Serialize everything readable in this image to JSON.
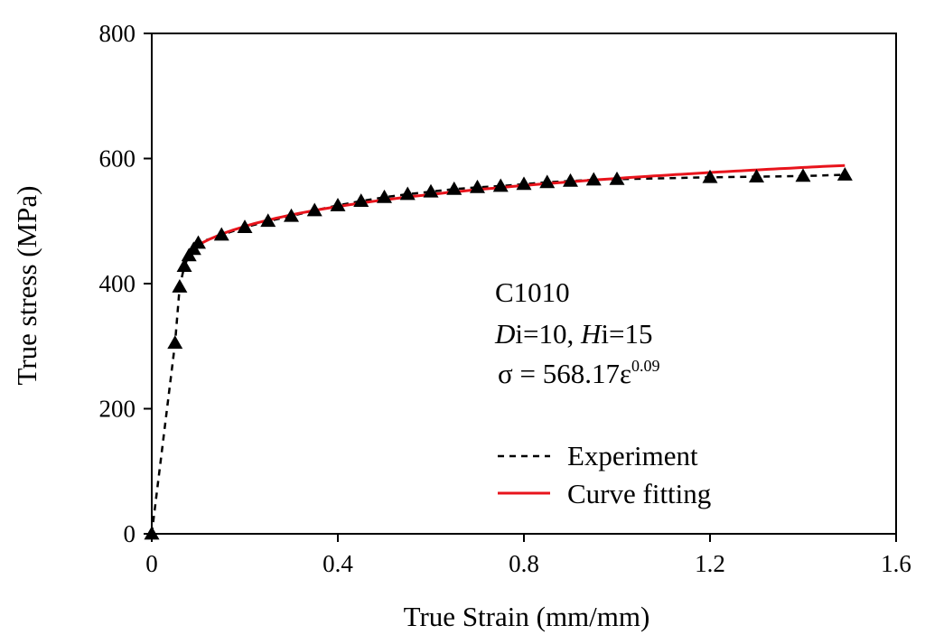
{
  "chart_data": {
    "type": "line",
    "title": "",
    "xlabel": "True Strain (mm/mm)",
    "ylabel": "True stress (MPa)",
    "xlim": [
      0,
      1.6
    ],
    "ylim": [
      0,
      800
    ],
    "xticks": [
      0,
      0.4,
      0.8,
      1.2,
      1.6
    ],
    "xtick_labels": [
      "0",
      "0.4",
      "0.8",
      "1.2",
      "1.6"
    ],
    "yticks": [
      0,
      200,
      400,
      600,
      800
    ],
    "ytick_labels": [
      "0",
      "200",
      "400",
      "600",
      "800"
    ],
    "grid": false,
    "legend_position": "bottom-right",
    "annotation": {
      "material": "C1010",
      "d_var": "D",
      "d_rest": "i=10, ",
      "h_var": "H",
      "h_rest": "i=15",
      "equation_base": "σ = 568.17ε",
      "equation_exponent": "0.09"
    },
    "series": [
      {
        "name": "Experiment",
        "style": "dashed",
        "marker": "triangle",
        "color": "#000000",
        "x": [
          0,
          0.05,
          0.06,
          0.07,
          0.08,
          0.09,
          0.1,
          0.15,
          0.2,
          0.25,
          0.3,
          0.35,
          0.4,
          0.45,
          0.5,
          0.55,
          0.6,
          0.65,
          0.7,
          0.75,
          0.8,
          0.85,
          0.9,
          0.95,
          1.0,
          1.2,
          1.3,
          1.4,
          1.49
        ],
        "y": [
          0,
          305,
          395,
          428,
          445,
          455,
          465,
          478,
          490,
          500,
          508,
          517,
          525,
          532,
          538,
          543,
          547,
          551,
          554,
          556,
          559,
          562,
          564,
          566,
          567,
          570,
          571,
          572,
          574
        ]
      },
      {
        "name": "Curve fitting",
        "style": "solid",
        "color": "#e8141c",
        "fit": {
          "K": 568.17,
          "n": 0.09,
          "x_start": 0.08,
          "x_end": 1.49
        }
      }
    ]
  }
}
